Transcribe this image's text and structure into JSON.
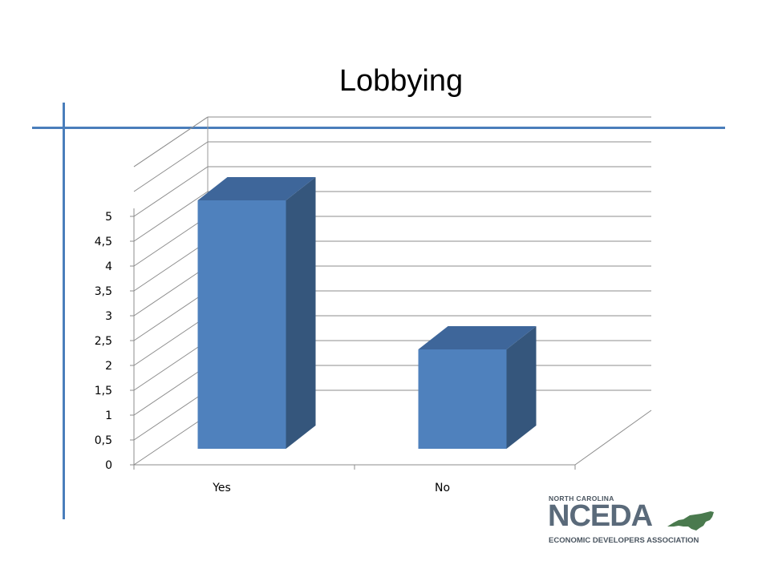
{
  "title": "Lobbying",
  "chart_data": {
    "type": "bar",
    "title": "Lobbying",
    "categories": [
      "Yes",
      "No"
    ],
    "values": [
      5,
      2
    ],
    "xlabel": "",
    "ylabel": "",
    "ylim": [
      0,
      5
    ],
    "yticks": [
      "0",
      "0,5",
      "1",
      "1,5",
      "2",
      "2,5",
      "3",
      "3,5",
      "4",
      "4,5",
      "5"
    ],
    "grid": true,
    "legend": "none",
    "style": "3d-column"
  },
  "colors": {
    "bar_front": "#4f81bd",
    "bar_side": "#35567c",
    "bar_top": "#3e669a",
    "accent_rule": "#4a7ebb"
  },
  "logo": {
    "top_text": "NORTH CAROLINA",
    "main_text": "NCEDA",
    "bottom_text": "ECONOMIC DEVELOPERS ASSOCIATION",
    "icon": "north-carolina-map-icon",
    "state_color": "#4a7a4e"
  }
}
